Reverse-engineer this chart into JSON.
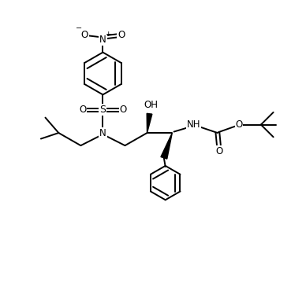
{
  "background_color": "#ffffff",
  "line_color": "#000000",
  "line_width": 1.4,
  "figsize": [
    3.88,
    3.74
  ],
  "dpi": 100,
  "xlim": [
    0,
    10
  ],
  "ylim": [
    0,
    10
  ]
}
